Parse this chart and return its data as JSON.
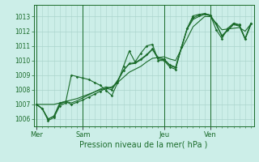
{
  "background_color": "#cceee8",
  "grid_color": "#aad4cc",
  "line_color": "#1a6b2a",
  "xlabel": "Pression niveau de la mer( hPa )",
  "ylim": [
    1005.5,
    1013.8
  ],
  "yticks": [
    1006,
    1007,
    1008,
    1009,
    1010,
    1011,
    1012,
    1013
  ],
  "day_labels": [
    "Mer",
    "Sam",
    "Jeu",
    "Ven"
  ],
  "day_positions": [
    0,
    8,
    22,
    30
  ],
  "n_points": 38,
  "line1": [
    1007.0,
    1006.7,
    1005.9,
    1006.1,
    1006.9,
    1007.1,
    1009.0,
    1008.9,
    1008.8,
    1008.7,
    1008.5,
    1008.3,
    1007.95,
    1007.6,
    1008.5,
    1009.6,
    1010.65,
    1009.9,
    1010.5,
    1011.0,
    1011.1,
    1010.0,
    1010.0,
    1009.55,
    1009.4,
    1010.9,
    1012.2,
    1013.05,
    1013.15,
    1013.2,
    1013.1,
    1012.1,
    1011.5,
    1012.2,
    1012.55,
    1012.45,
    1011.5,
    1012.55
  ],
  "line2": [
    1007.0,
    1006.7,
    1006.0,
    1006.2,
    1007.1,
    1007.2,
    1007.0,
    1007.15,
    1007.3,
    1007.5,
    1007.7,
    1007.9,
    1008.1,
    1008.0,
    1008.6,
    1009.3,
    1009.8,
    1009.85,
    1010.1,
    1010.4,
    1010.8,
    1010.2,
    1010.1,
    1009.7,
    1009.55,
    1010.9,
    1012.2,
    1012.9,
    1013.1,
    1013.2,
    1013.1,
    1012.5,
    1011.7,
    1012.1,
    1012.5,
    1012.4,
    1011.5,
    1012.5
  ],
  "line3": [
    1007.0,
    1007.0,
    1007.0,
    1007.0,
    1007.1,
    1007.2,
    1007.3,
    1007.4,
    1007.55,
    1007.7,
    1007.85,
    1008.0,
    1008.1,
    1008.2,
    1008.5,
    1008.85,
    1009.2,
    1009.4,
    1009.6,
    1009.9,
    1010.15,
    1010.2,
    1010.25,
    1010.1,
    1010.0,
    1010.8,
    1011.5,
    1012.3,
    1012.65,
    1013.0,
    1013.0,
    1012.55,
    1012.1,
    1012.15,
    1012.2,
    1012.25,
    1012.0,
    1012.5
  ],
  "line4": [
    1007.0,
    1006.7,
    1006.0,
    1006.2,
    1007.0,
    1007.2,
    1007.1,
    1007.25,
    1007.45,
    1007.65,
    1007.85,
    1008.05,
    1008.2,
    1008.1,
    1008.65,
    1009.35,
    1009.75,
    1009.8,
    1010.05,
    1010.35,
    1010.75,
    1010.1,
    1010.05,
    1009.65,
    1009.5,
    1010.85,
    1012.15,
    1012.8,
    1013.0,
    1013.15,
    1013.05,
    1012.45,
    1011.65,
    1012.05,
    1012.45,
    1012.35,
    1011.45,
    1012.45
  ],
  "ytick_fontsize": 5.5,
  "xtick_fontsize": 6,
  "xlabel_fontsize": 7,
  "lw": 0.8,
  "marker_size": 1.8
}
